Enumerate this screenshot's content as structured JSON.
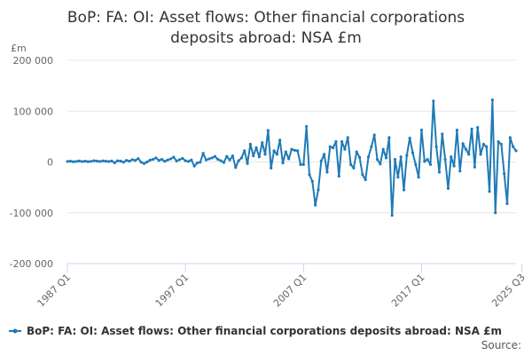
{
  "chart_data": {
    "type": "line",
    "title_lines": [
      "BoP: FA: OI: Asset flows: Other financial corporations",
      "deposits abroad: NSA £m"
    ],
    "y_unit": "£m",
    "ylim": [
      -200000,
      200000
    ],
    "y_ticks": [
      200000,
      100000,
      0,
      -100000,
      -200000
    ],
    "y_tick_labels": [
      "200 000",
      "100 000",
      "0",
      "-100 000",
      "-200 000"
    ],
    "x_tick_labels": [
      "1987 Q1",
      "1997 Q1",
      "2007 Q1",
      "2017 Q1",
      "2025 Q3"
    ],
    "x_tick_index": [
      0,
      40,
      80,
      120,
      154
    ],
    "grid": true,
    "legend_position": "bottom-left",
    "color": "#1f7bb6",
    "series": [
      {
        "name": "BoP: FA: OI: Asset flows: Other financial corporations deposits abroad: NSA £m",
        "values": [
          1000,
          1500,
          500,
          1000,
          2000,
          800,
          1500,
          600,
          1200,
          2500,
          1800,
          1000,
          2200,
          1500,
          800,
          2000,
          -1500,
          2500,
          1800,
          -500,
          3000,
          1500,
          4500,
          3000,
          6500,
          -500,
          -3000,
          0,
          3500,
          5000,
          8000,
          3000,
          5000,
          1200,
          4000,
          6000,
          9500,
          2000,
          4500,
          7000,
          2500,
          1000,
          4000,
          -8000,
          -2000,
          -500,
          17000,
          4000,
          6000,
          8000,
          11000,
          5000,
          2500,
          -1000,
          11000,
          4000,
          12000,
          -11000,
          2500,
          8000,
          22000,
          -3000,
          35000,
          12000,
          28000,
          10000,
          38000,
          15000,
          62000,
          -12000,
          22000,
          15000,
          43000,
          -2000,
          20000,
          6000,
          25000,
          23000,
          22000,
          -5000,
          -5000,
          70000,
          -25000,
          -38000,
          -85000,
          -55000,
          2000,
          15000,
          -20000,
          30000,
          28000,
          40000,
          -28000,
          40000,
          25000,
          48000,
          -5000,
          -12000,
          20000,
          9000,
          -25000,
          -35000,
          10000,
          30000,
          53000,
          5000,
          -4000,
          25000,
          8000,
          48000,
          -105000,
          5000,
          -30000,
          10000,
          -55000,
          13000,
          47000,
          18000,
          -5000,
          -30000,
          63000,
          1000,
          5000,
          -5000,
          120000,
          30000,
          -20000,
          55000,
          5000,
          -52000,
          10000,
          -8000,
          63000,
          -18000,
          36000,
          25000,
          15000,
          65000,
          -10000,
          68000,
          15000,
          35000,
          30000,
          -58000,
          122000,
          -100000,
          40000,
          35000,
          -23000,
          -82000,
          48000,
          30000,
          22000
        ]
      }
    ],
    "source_label": "Source:"
  }
}
